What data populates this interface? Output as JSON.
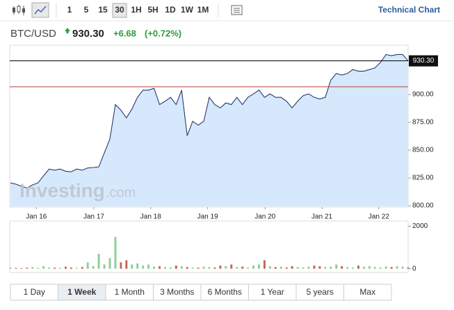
{
  "toolbar": {
    "intervals": [
      "1",
      "5",
      "15",
      "30",
      "1H",
      "5H",
      "1D",
      "1W",
      "1M"
    ],
    "active": "30",
    "link": "Technical Chart"
  },
  "header": {
    "symbol": "BTC/USD",
    "price": "930.30",
    "change": "+6.68",
    "change_pct": "(+0.72%)"
  },
  "watermark": {
    "main": "Investing",
    "suffix": ".com"
  },
  "chart_data": {
    "type": "area",
    "series": [
      {
        "name": "BTC/USD",
        "color": "#263a6b",
        "fill": "#d6e8fb",
        "values": [
          820.6,
          819.4,
          817.5,
          816,
          818.8,
          820.6,
          827,
          833,
          832,
          833,
          831,
          830.6,
          833,
          832,
          834,
          834.4,
          835,
          847.5,
          860,
          891,
          886,
          879,
          887,
          897.5,
          904,
          904,
          905.6,
          891,
          894,
          897.5,
          891,
          904,
          863,
          876,
          872.5,
          876,
          897.5,
          891,
          888,
          892.5,
          891,
          897.5,
          891,
          897.5,
          900.6,
          904,
          897.5,
          900.6,
          897.5,
          897.5,
          894,
          888,
          894,
          899,
          900.6,
          897.5,
          896,
          897.5,
          913,
          919,
          917.5,
          919,
          922.5,
          921,
          921,
          922.5,
          924,
          929,
          936,
          935,
          936,
          936,
          930.3
        ]
      }
    ],
    "xlim": [
      0,
      72
    ],
    "xticks": [
      {
        "value": 4.7,
        "label": "Jan 16"
      },
      {
        "value": 15.1,
        "label": "Jan 17"
      },
      {
        "value": 25.4,
        "label": "Jan 18"
      },
      {
        "value": 35.7,
        "label": "Jan 19"
      },
      {
        "value": 46.1,
        "label": "Jan 20"
      },
      {
        "value": 56.4,
        "label": "Jan 21"
      },
      {
        "value": 66.7,
        "label": "Jan 22"
      }
    ],
    "ylim": [
      799.4,
      944.4
    ],
    "yticks": [
      {
        "value": 800,
        "label": "800.00"
      },
      {
        "value": 825,
        "label": "825.00"
      },
      {
        "value": 850,
        "label": "850.00"
      },
      {
        "value": 875,
        "label": "875.00"
      },
      {
        "value": 900,
        "label": "900.00"
      }
    ],
    "last_line": {
      "value": 930.3,
      "label": "930.30",
      "color": "#000000"
    },
    "reference_line": {
      "value": 907,
      "color": "#b5453a"
    },
    "volume": {
      "values": [
        60,
        40,
        30,
        50,
        80,
        40,
        120,
        60,
        50,
        40,
        100,
        60,
        40,
        80,
        300,
        120,
        700,
        200,
        500,
        1500,
        300,
        400,
        200,
        250,
        150,
        200,
        100,
        120,
        80,
        60,
        150,
        120,
        80,
        60,
        50,
        100,
        80,
        60,
        150,
        120,
        200,
        80,
        100,
        60,
        150,
        200,
        400,
        120,
        80,
        100,
        60,
        120,
        80,
        60,
        100,
        150,
        120,
        80,
        100,
        200,
        120,
        80,
        60,
        150,
        100,
        120,
        80,
        60,
        100,
        80,
        120,
        100,
        60
      ],
      "up_color": "#8fcf98",
      "down_color": "#c9665a",
      "ylim": [
        -175,
        2245
      ],
      "yticks": [
        0,
        2000
      ]
    }
  },
  "ranges": {
    "tabs": [
      "1 Day",
      "1 Week",
      "1 Month",
      "3 Months",
      "6 Months",
      "1 Year",
      "5 years",
      "Max"
    ],
    "active": "1 Week"
  }
}
